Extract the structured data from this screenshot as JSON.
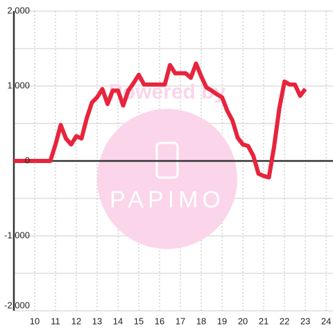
{
  "chart_data": {
    "type": "line",
    "watermark": {
      "top": "Powered by",
      "brand": "PAPIMO"
    },
    "x": [
      9,
      10.75,
      11,
      11.25,
      11.5,
      11.75,
      12,
      12.25,
      12.5,
      12.75,
      13,
      13.25,
      13.5,
      13.75,
      14,
      14.25,
      14.5,
      14.75,
      15,
      15.25,
      15.5,
      15.75,
      16,
      16.25,
      16.5,
      16.75,
      17,
      17.25,
      17.5,
      17.75,
      18,
      18.25,
      18.5,
      18.75,
      19,
      19.25,
      19.5,
      19.75,
      20,
      20.25,
      20.5,
      20.75,
      21,
      21.25,
      21.5,
      21.75,
      22,
      22.25,
      22.5,
      22.75,
      23
    ],
    "series": [
      {
        "color": "#e8243c",
        "values": [
          0,
          0,
          220,
          480,
          300,
          220,
          330,
          300,
          570,
          780,
          850,
          960,
          760,
          940,
          940,
          740,
          940,
          1040,
          1150,
          1020,
          1020,
          1020,
          1020,
          1020,
          1280,
          1170,
          1170,
          1170,
          1110,
          1300,
          1130,
          980,
          940,
          890,
          850,
          670,
          540,
          310,
          220,
          200,
          70,
          -170,
          -200,
          -220,
          190,
          700,
          1060,
          1020,
          1020,
          870,
          960
        ]
      }
    ],
    "xlim": [
      9,
      24.33
    ],
    "xticks": [
      10,
      11,
      12,
      13,
      14,
      15,
      16,
      17,
      18,
      19,
      20,
      21,
      22,
      23,
      24
    ],
    "ylim": [
      -2000,
      2000
    ],
    "yticks": [
      {
        "value": -2000,
        "label": "-2,000"
      },
      {
        "value": -1000,
        "label": "-1,000"
      },
      0,
      {
        "value": 1000,
        "label": "1,000"
      },
      {
        "value": 2000,
        "label": "2,000"
      }
    ],
    "yminorticks": [
      -1500,
      -500,
      500,
      1500
    ],
    "grid": true
  }
}
